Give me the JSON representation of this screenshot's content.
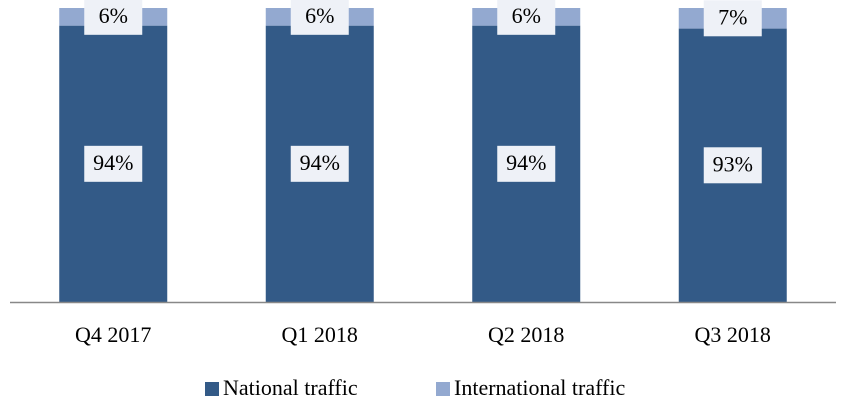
{
  "chart_data": {
    "type": "stacked_bar",
    "categories": [
      "Q4 2017",
      "Q1 2018",
      "Q2 2018",
      "Q3 2018"
    ],
    "series": [
      {
        "name": "National traffic",
        "color": "#335a87",
        "values": [
          94,
          94,
          94,
          93
        ],
        "value_labels": [
          "94%",
          "94%",
          "94%",
          "93%"
        ]
      },
      {
        "name": "International traffic",
        "color": "#93a9d0",
        "values": [
          6,
          6,
          6,
          7
        ],
        "value_labels": [
          "6%",
          "6%",
          "6%",
          "7%"
        ]
      }
    ],
    "ylim": [
      0,
      100
    ],
    "legend": "bottom"
  }
}
